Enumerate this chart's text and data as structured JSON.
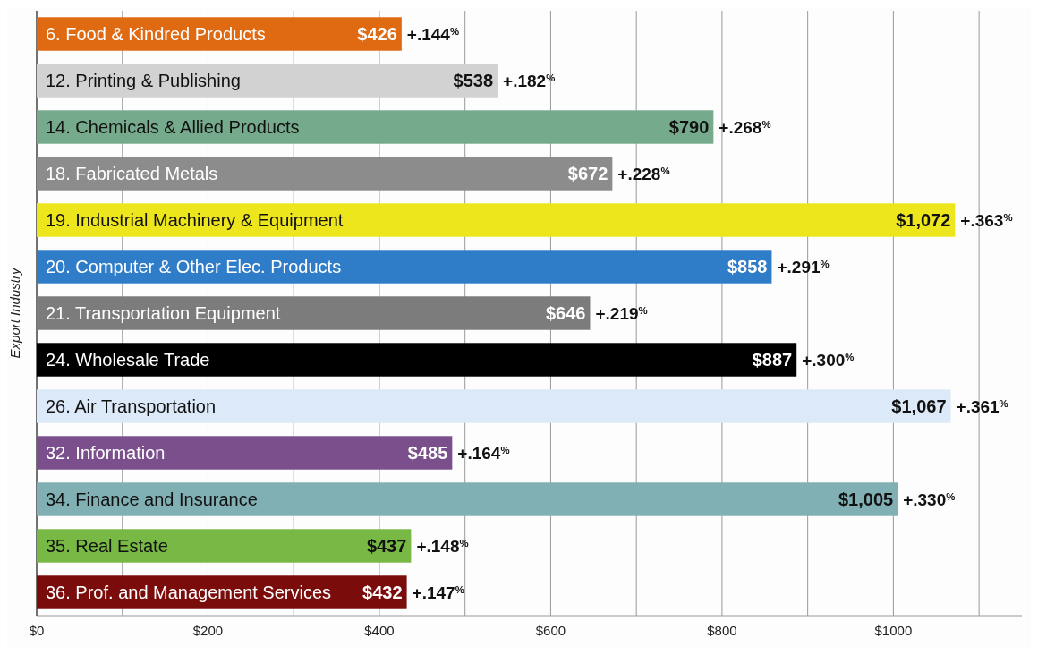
{
  "chart_data": {
    "type": "bar",
    "orientation": "horizontal",
    "ylabel": "Export Industry",
    "categories": [
      "6. Food & Kindred Products",
      "12. Printing & Publishing",
      "14. Chemicals & Allied Products",
      "18. Fabricated Metals",
      "19. Industrial Machinery & Equipment",
      "20. Computer & Other Elec. Products",
      "21. Transportation Equipment",
      "24. Wholesale Trade",
      "26. Air Transportation",
      "32. Information",
      "34. Finance and Insurance",
      "35. Real Estate",
      "36. Prof. and Management Services"
    ],
    "values": [
      426,
      538,
      790,
      672,
      1072,
      858,
      646,
      887,
      1067,
      485,
      1005,
      437,
      432
    ],
    "value_labels": [
      "$426",
      "$538",
      "$790",
      "$672",
      "$1,072",
      "$858",
      "$646",
      "$887",
      "$1,067",
      "$485",
      "$1,005",
      "$437",
      "$432"
    ],
    "colors": [
      "#e06a12",
      "#d2d2d2",
      "#76aa8c",
      "#8c8c8c",
      "#eee61c",
      "#2f7cc8",
      "#7c7c7c",
      "#000000",
      "#dce9f8",
      "#7a4f8c",
      "#80b0b4",
      "#78b844",
      "#7a0c0c"
    ],
    "annotations": [
      {
        "text": "+.144$^{%}$",
        "x": 426,
        "y": "6. Food & Kindred Products"
      },
      {
        "text": "+.182$^{%}$",
        "x": 538,
        "y": "12. Printing & Publishing"
      },
      {
        "text": "+.268$^{%}$",
        "x": 790,
        "y": "14. Chemicals & Allied Products"
      },
      {
        "text": "+.228$^{%}$",
        "x": 672,
        "y": "18. Fabricated Metals"
      },
      {
        "text": "+.363$^{%}$",
        "x": 1072,
        "y": "19. Industrial Machinery & Equipment"
      },
      {
        "text": "+.291$^{%}$",
        "x": 858,
        "y": "20. Computer & Other Elec. Products"
      },
      {
        "text": "+.219$^{%}$",
        "x": 646,
        "y": "21. Transportation Equipment"
      },
      {
        "text": "+.300$^{%}$",
        "x": 887,
        "y": "24. Wholesale Trade"
      },
      {
        "text": "+.361$^{%}$",
        "x": 1067,
        "y": "26. Air Transportation"
      },
      {
        "text": "+.164$^{%}$",
        "x": 485,
        "y": "32. Information"
      },
      {
        "text": "+.330$^{%}$",
        "x": 1005,
        "y": "34. Finance and Insurance"
      },
      {
        "text": "+.148$^{%}$",
        "x": 437,
        "y": "35. Real Estate"
      },
      {
        "text": "+.147$^{%}$",
        "x": 432,
        "y": "36. Prof. and Management Services"
      }
    ],
    "xlim": [
      0,
      1150
    ],
    "xticks": [
      {
        "value": 0,
        "label": "$0"
      },
      {
        "value": 100,
        "label": null
      },
      {
        "value": 200,
        "label": "$200"
      },
      {
        "value": 300,
        "label": null
      },
      {
        "value": 400,
        "label": "$400"
      },
      {
        "value": 500,
        "label": null
      },
      {
        "value": 600,
        "label": "$600"
      },
      {
        "value": 700,
        "label": null
      },
      {
        "value": 800,
        "label": "$800"
      },
      {
        "value": 900,
        "label": null
      },
      {
        "value": 1000,
        "label": "$1000"
      },
      {
        "value": 1100,
        "label": null
      }
    ],
    "grid": "x"
  }
}
